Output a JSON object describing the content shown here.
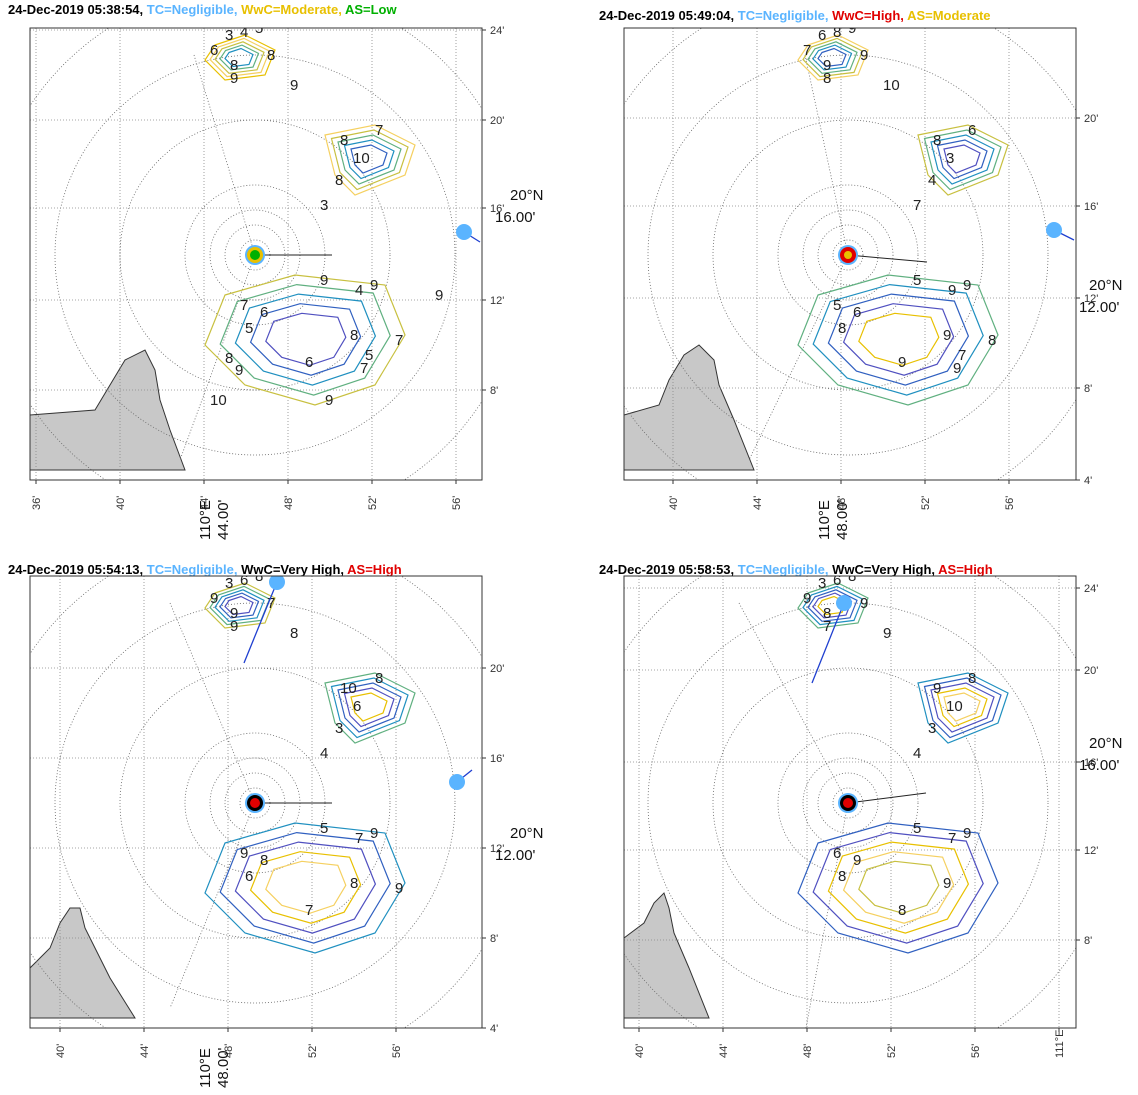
{
  "colors": {
    "tc": "#5ab4ff",
    "negligible": "#5ab4ff",
    "low": "#00b000",
    "moderate": "#e8c000",
    "high": "#e00000",
    "very_high": "#000000",
    "land": "#c8c8c8",
    "ship_marker": "#5ab4ff",
    "ship_line": "#1f3fd0"
  },
  "panels": [
    {
      "timestamp": "24-Dec-2019 05:38:54,",
      "tc": "TC=Negligible,",
      "wwc": "WwC=Moderate,",
      "wwc_level": "moderate",
      "as": "AS=Low",
      "as_level": "low",
      "center_marker": "green-orange-disc",
      "x_ticks": [
        "36'",
        "40'",
        "44'",
        "48'",
        "52'",
        "56'"
      ],
      "y_ticks": [
        "24'",
        "20'",
        "16'",
        "12'",
        "8'"
      ],
      "x_label_line1": "110°E",
      "x_label_line2": "44.00'",
      "y_label_line1": "20°N",
      "y_label_line2": "16.00'",
      "contour_labels": [
        "3",
        "4",
        "5",
        "6",
        "8",
        "8",
        "9",
        "9",
        "8",
        "7",
        "10",
        "8",
        "3",
        "4",
        "9",
        "9",
        "7",
        "6",
        "5",
        "6",
        "8",
        "7",
        "5",
        "7",
        "9",
        "8",
        "9",
        "10",
        "9"
      ]
    },
    {
      "timestamp": "24-Dec-2019 05:49:04,",
      "tc": "TC=Negligible,",
      "wwc": "WwC=High,",
      "wwc_level": "high",
      "as": "AS=Moderate",
      "as_level": "moderate",
      "center_marker": "red-disc",
      "x_ticks": [
        "40'",
        "44'",
        "48'",
        "52'",
        "56'"
      ],
      "y_ticks": [
        "20'",
        "16'",
        "12'",
        "8'",
        "4'"
      ],
      "x_label_line1": "110°E",
      "x_label_line2": "48.00'",
      "y_label_line1": "20°N",
      "y_label_line2": "12.00'",
      "contour_labels": [
        "6",
        "8",
        "9",
        "7",
        "9",
        "9",
        "8",
        "10",
        "8",
        "6",
        "3",
        "4",
        "7",
        "9",
        "9",
        "5",
        "5",
        "6",
        "8",
        "9",
        "9",
        "8",
        "7",
        "9"
      ]
    },
    {
      "timestamp": "24-Dec-2019 05:54:13,",
      "tc": "TC=Negligible,",
      "wwc": "WwC=Very High,",
      "wwc_level": "very_high",
      "as": "AS=High",
      "as_level": "high",
      "center_marker": "red-black-disc",
      "x_ticks": [
        "40'",
        "44'",
        "48'",
        "52'",
        "56'"
      ],
      "y_ticks": [
        "20'",
        "16'",
        "12'",
        "8'",
        "4'"
      ],
      "x_label_line1": "110°E",
      "x_label_line2": "48.00'",
      "y_label_line1": "20°N",
      "y_label_line2": "12.00'",
      "contour_labels": [
        "3",
        "6",
        "8",
        "9",
        "9",
        "7",
        "9",
        "8",
        "10",
        "8",
        "6",
        "3",
        "4",
        "7",
        "9",
        "5",
        "9",
        "8",
        "6",
        "7",
        "8",
        "9"
      ]
    },
    {
      "timestamp": "24-Dec-2019 05:58:53,",
      "tc": "TC=Negligible,",
      "wwc": "WwC=Very High,",
      "wwc_level": "very_high",
      "as": "AS=High",
      "as_level": "high",
      "center_marker": "red-black-disc",
      "x_ticks": [
        "40'",
        "44'",
        "48'",
        "52'",
        "56'",
        "111°E"
      ],
      "y_ticks": [
        "24'",
        "20'",
        "16'",
        "12'",
        "8'"
      ],
      "x_label_line1": "",
      "x_label_line2": "",
      "y_label_line1": "20°N",
      "y_label_line2": "16.00'",
      "contour_labels": [
        "3",
        "6",
        "8",
        "9",
        "8",
        "9",
        "7",
        "9",
        "9",
        "8",
        "10",
        "3",
        "4",
        "7",
        "9",
        "5",
        "6",
        "9",
        "8",
        "8",
        "9"
      ]
    }
  ]
}
